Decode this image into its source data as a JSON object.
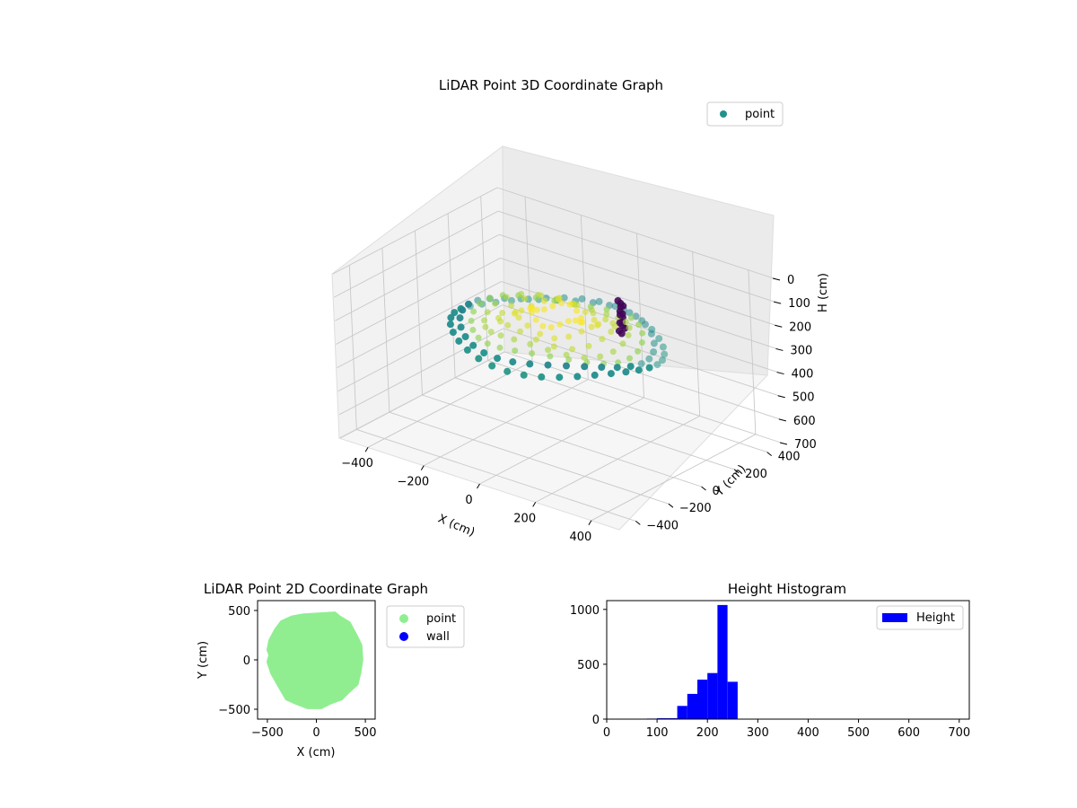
{
  "chart_data": [
    {
      "type": "scatter",
      "projection": "3d",
      "title": "LiDAR Point 3D Coordinate Graph",
      "xlabel": "X (cm)",
      "ylabel": "Y (cm)",
      "zlabel": "H (cm)",
      "xlim": [
        -500,
        500
      ],
      "ylim": [
        -500,
        500
      ],
      "zlim": [
        0,
        700
      ],
      "z_inverted": true,
      "xticks": [
        -400,
        -200,
        0,
        200,
        400
      ],
      "yticks": [
        -400,
        -200,
        0,
        200,
        400
      ],
      "zticks": [
        0,
        100,
        200,
        300,
        400,
        500,
        600,
        700
      ],
      "xtick_labels": [
        "−400",
        "−200",
        "0",
        "200",
        "400"
      ],
      "ytick_labels": [
        "−400",
        "−200",
        "0",
        "200",
        "400"
      ],
      "ztick_labels": [
        "0",
        "100",
        "200",
        "300",
        "400",
        "500",
        "600",
        "700"
      ],
      "colormap": "viridis",
      "color_by": "height",
      "grid": true,
      "legend": {
        "placement": "top-right",
        "entries": [
          {
            "label": "point",
            "color": "#21918c"
          }
        ]
      },
      "series": [
        {
          "name": "point",
          "shape": "dome of points, radius ~330 cm, heights ~130-270 cm",
          "rings": [
            {
              "radius": 330,
              "height": 260
            },
            {
              "radius": 300,
              "height": 240
            },
            {
              "radius": 265,
              "height": 225
            },
            {
              "radius": 225,
              "height": 210
            },
            {
              "radius": 180,
              "height": 195
            },
            {
              "radius": 130,
              "height": 180
            },
            {
              "radius": 80,
              "height": 165
            }
          ],
          "cluster": {
            "x": 110,
            "y": 190,
            "h_min": 130,
            "h_max": 280
          }
        }
      ]
    },
    {
      "type": "scatter",
      "title": "LiDAR Point 2D Coordinate Graph",
      "xlabel": "X (cm)",
      "ylabel": "Y (cm)",
      "xlim": [
        -600,
        600
      ],
      "ylim": [
        -600,
        600
      ],
      "xticks": [
        -500,
        0,
        500
      ],
      "yticks": [
        -500,
        0,
        500
      ],
      "xtick_labels": [
        "−500",
        "0",
        "500"
      ],
      "ytick_labels": [
        "−500",
        "0",
        "500"
      ],
      "legend": {
        "placement": "outside right",
        "entries": [
          {
            "label": "point",
            "color": "#90ee90"
          },
          {
            "label": "wall",
            "color": "#0000ff"
          }
        ]
      },
      "series": [
        {
          "name": "point",
          "color": "#90ee90",
          "outline": [
            [
              -140,
              460
            ],
            [
              20,
              470
            ],
            [
              190,
              480
            ],
            [
              240,
              440
            ],
            [
              340,
              380
            ],
            [
              410,
              250
            ],
            [
              460,
              150
            ],
            [
              470,
              0
            ],
            [
              450,
              -130
            ],
            [
              420,
              -250
            ],
            [
              330,
              -330
            ],
            [
              260,
              -400
            ],
            [
              150,
              -440
            ],
            [
              50,
              -490
            ],
            [
              -90,
              -490
            ],
            [
              -220,
              -440
            ],
            [
              -310,
              -400
            ],
            [
              -380,
              -280
            ],
            [
              -460,
              -140
            ],
            [
              -500,
              -20
            ],
            [
              -480,
              50
            ],
            [
              -500,
              100
            ],
            [
              -480,
              200
            ],
            [
              -420,
              310
            ],
            [
              -360,
              390
            ],
            [
              -250,
              440
            ]
          ]
        },
        {
          "name": "wall",
          "color": "#0000ff",
          "points": []
        }
      ]
    },
    {
      "type": "bar",
      "subtype": "histogram",
      "title": "Height Histogram",
      "xlim": [
        0,
        720
      ],
      "ylim": [
        0,
        1080
      ],
      "xticks": [
        0,
        100,
        200,
        300,
        400,
        500,
        600,
        700
      ],
      "yticks": [
        0,
        500,
        1000
      ],
      "xtick_labels": [
        "0",
        "100",
        "200",
        "300",
        "400",
        "500",
        "600",
        "700"
      ],
      "ytick_labels": [
        "0",
        "500",
        "1000"
      ],
      "color": "#0000ff",
      "legend": {
        "placement": "top-right",
        "entries": [
          {
            "label": "Height",
            "color": "#0000ff"
          }
        ]
      },
      "bin_width": 20,
      "bins": [
        {
          "x0": 80,
          "x1": 100,
          "count": 5
        },
        {
          "x0": 100,
          "x1": 120,
          "count": 8
        },
        {
          "x0": 120,
          "x1": 140,
          "count": 8
        },
        {
          "x0": 140,
          "x1": 160,
          "count": 120
        },
        {
          "x0": 160,
          "x1": 180,
          "count": 230
        },
        {
          "x0": 180,
          "x1": 200,
          "count": 360
        },
        {
          "x0": 200,
          "x1": 220,
          "count": 420
        },
        {
          "x0": 220,
          "x1": 240,
          "count": 1040
        },
        {
          "x0": 240,
          "x1": 260,
          "count": 340
        }
      ]
    }
  ]
}
